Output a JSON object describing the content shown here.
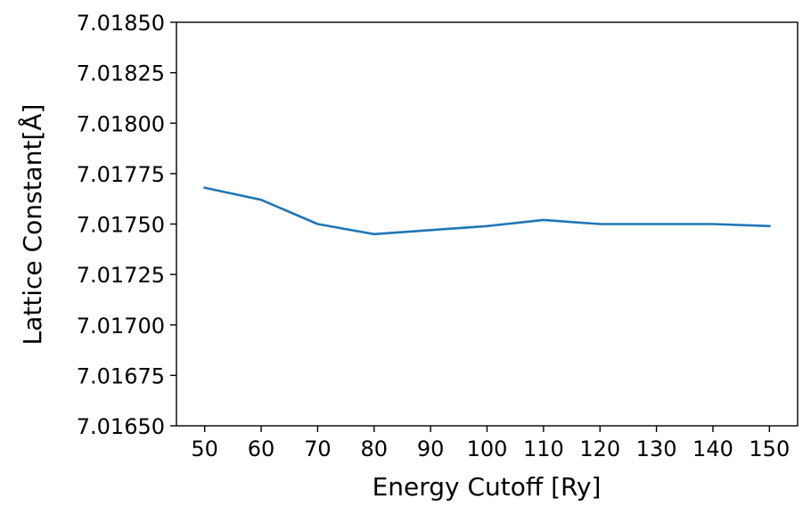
{
  "chart_data": {
    "type": "line",
    "title": "",
    "xlabel": "Energy Cutoff [Ry]",
    "ylabel": "Lattice Constant[Å]",
    "xlim": [
      45,
      155
    ],
    "ylim": [
      7.0165,
      7.0185
    ],
    "xticks": [
      50,
      60,
      70,
      80,
      90,
      100,
      110,
      120,
      130,
      140,
      150
    ],
    "xtick_labels": [
      "50",
      "60",
      "70",
      "80",
      "90",
      "100",
      "110",
      "120",
      "130",
      "140",
      "150"
    ],
    "yticks": [
      7.0165,
      7.01675,
      7.017,
      7.01725,
      7.0175,
      7.01775,
      7.018,
      7.01825,
      7.0185
    ],
    "ytick_labels": [
      "7.01650",
      "7.01675",
      "7.01700",
      "7.01725",
      "7.01750",
      "7.01775",
      "7.01800",
      "7.01825",
      "7.01850"
    ],
    "grid": false,
    "series": [
      {
        "color": "#1f77b4",
        "x": [
          50,
          60,
          70,
          80,
          90,
          100,
          110,
          120,
          140,
          150
        ],
        "y": [
          7.01768,
          7.01762,
          7.0175,
          7.01745,
          7.01747,
          7.01749,
          7.01752,
          7.0175,
          7.0175,
          7.01749
        ]
      }
    ]
  }
}
